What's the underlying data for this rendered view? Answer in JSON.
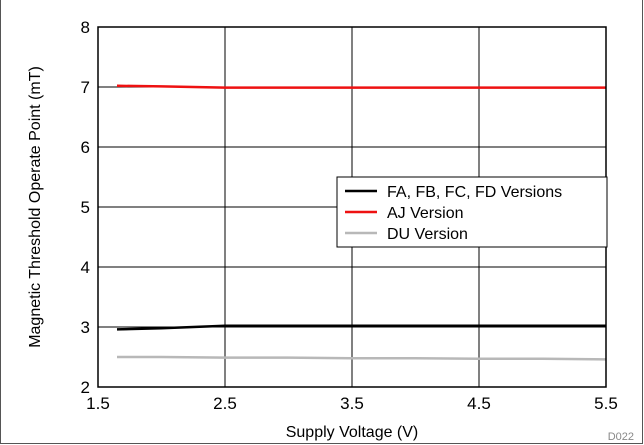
{
  "chart_data": {
    "type": "line",
    "title": "",
    "xlabel": "Supply Voltage (V)",
    "ylabel": "Magnetic Threshold Operate Point (mT)",
    "xlim": [
      1.5,
      5.5
    ],
    "ylim": [
      2,
      8
    ],
    "xticks": [
      "1.5",
      "2.5",
      "3.5",
      "4.5",
      "5.5"
    ],
    "yticks": [
      "2",
      "3",
      "4",
      "5",
      "6",
      "7",
      "8"
    ],
    "grid": true,
    "legend_position": "center-right",
    "series": [
      {
        "name": "FA, FB, FC, FD Versions",
        "color": "#000000",
        "x": [
          1.65,
          2.0,
          2.5,
          3.0,
          3.5,
          4.0,
          4.5,
          5.0,
          5.5
        ],
        "y": [
          2.96,
          2.98,
          3.02,
          3.02,
          3.02,
          3.02,
          3.02,
          3.02,
          3.02
        ]
      },
      {
        "name": "AJ Version",
        "color": "#ee1111",
        "x": [
          1.65,
          2.0,
          2.5,
          3.0,
          3.5,
          4.0,
          4.5,
          5.0,
          5.5
        ],
        "y": [
          7.02,
          7.01,
          6.99,
          6.99,
          6.99,
          6.99,
          6.99,
          6.99,
          6.99
        ]
      },
      {
        "name": "DU Version",
        "color": "#b8b8b8",
        "x": [
          1.65,
          2.0,
          2.5,
          3.0,
          3.5,
          4.0,
          4.5,
          5.0,
          5.5
        ],
        "y": [
          2.5,
          2.5,
          2.49,
          2.49,
          2.48,
          2.48,
          2.47,
          2.47,
          2.46
        ]
      }
    ]
  },
  "figure_code": "D022"
}
